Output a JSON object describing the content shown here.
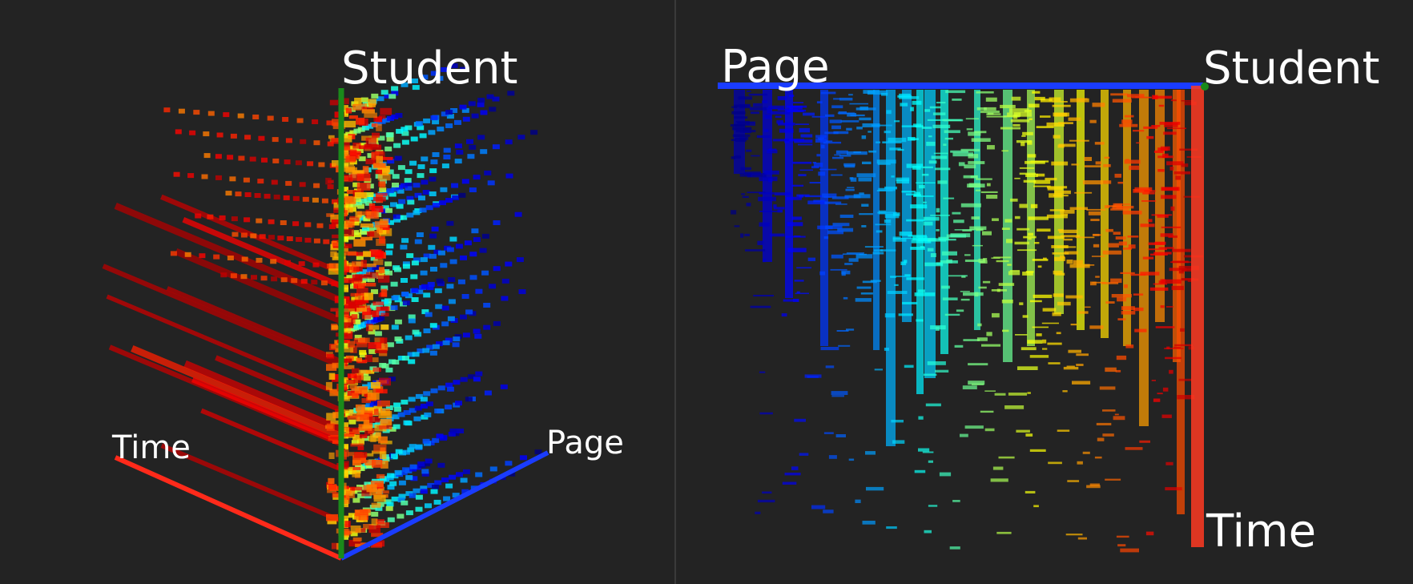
{
  "chart_data": [
    {
      "type": "scatter",
      "view": "3d-perspective",
      "axes": {
        "x": "Time",
        "y": "Student",
        "z": "Page"
      },
      "grid": false,
      "colormap": "jet (red = early page index, blue = late page index)"
    },
    {
      "type": "heatmap",
      "view": "orthographic page-vs-time",
      "axes": {
        "x": "Page",
        "y": "Time",
        "corner": "Student"
      },
      "grid": false,
      "colormap": "jet (blue = first pages, red = last pages)"
    }
  ],
  "labels": {
    "left_student": "Student",
    "left_time": "Time",
    "left_page": "Page",
    "right_page": "Page",
    "right_student": "Student",
    "right_time": "Time"
  },
  "colors": {
    "background": "#232323",
    "time_axis": "#ff2a1a",
    "student_axis": "#1a8a1a",
    "page_axis": "#1a3cff"
  }
}
